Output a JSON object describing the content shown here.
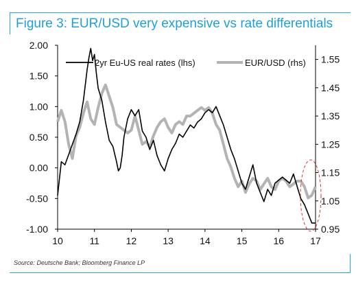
{
  "header": {
    "title": "Figure 3: EUR/USD very expensive vs rate differentials"
  },
  "footer": {
    "source": "Source: Deutsche Bank; Bloomberg Finance LP"
  },
  "chart_data": {
    "type": "line",
    "title": "Figure 3: EUR/USD very expensive vs rate differentials",
    "x_ticks": [
      "10",
      "11",
      "12",
      "13",
      "14",
      "15",
      "16",
      "17"
    ],
    "x_range": [
      10,
      17
    ],
    "y_left": {
      "range": [
        -1.0,
        2.0
      ],
      "ticks": [
        "2.00",
        "1.50",
        "1.00",
        "0.50",
        "0.00",
        "-0.50",
        "-1.00"
      ]
    },
    "y_right": {
      "range": [
        0.95,
        1.6
      ],
      "ticks": [
        "1.55",
        "1.45",
        "1.35",
        "1.25",
        "1.15",
        "1.05",
        "0.95"
      ]
    },
    "legend_position": "top",
    "annotation": "dashed red ellipse highlighting 2016.6-2017",
    "series": [
      {
        "name": "2yr Eu-US real rates (lhs)",
        "axis": "left",
        "color": "#000000",
        "x": [
          10.0,
          10.1,
          10.2,
          10.35,
          10.5,
          10.6,
          10.7,
          10.75,
          10.8,
          10.85,
          10.9,
          10.95,
          11.0,
          11.05,
          11.1,
          11.2,
          11.3,
          11.4,
          11.5,
          11.6,
          11.65,
          11.7,
          11.75,
          11.8,
          11.9,
          12.0,
          12.1,
          12.2,
          12.3,
          12.4,
          12.5,
          12.6,
          12.7,
          12.8,
          12.9,
          13.0,
          13.1,
          13.2,
          13.3,
          13.4,
          13.5,
          13.6,
          13.7,
          13.8,
          13.9,
          14.0,
          14.1,
          14.2,
          14.3,
          14.4,
          14.5,
          14.6,
          14.7,
          14.8,
          14.9,
          15.0,
          15.1,
          15.2,
          15.3,
          15.4,
          15.5,
          15.6,
          15.7,
          15.8,
          15.9,
          16.0,
          16.1,
          16.2,
          16.3,
          16.4,
          16.5,
          16.6,
          16.7,
          16.8,
          16.9,
          17.0
        ],
        "values": [
          -0.45,
          0.1,
          0.05,
          0.3,
          0.55,
          0.75,
          1.1,
          1.35,
          1.6,
          1.8,
          1.95,
          1.75,
          1.85,
          1.55,
          1.3,
          1.1,
          0.75,
          0.45,
          0.35,
          0.1,
          -0.05,
          0.0,
          0.2,
          0.5,
          0.8,
          0.95,
          0.85,
          0.95,
          0.6,
          0.5,
          0.3,
          0.45,
          0.2,
          0.05,
          -0.05,
          0.15,
          0.3,
          0.4,
          0.55,
          0.5,
          0.6,
          0.7,
          0.65,
          0.75,
          0.8,
          0.9,
          0.95,
          0.9,
          1.0,
          0.85,
          0.7,
          0.5,
          0.3,
          0.15,
          -0.05,
          -0.25,
          -0.35,
          -0.15,
          0.05,
          -0.25,
          -0.4,
          -0.55,
          -0.35,
          -0.45,
          -0.25,
          -0.2,
          -0.15,
          -0.2,
          -0.25,
          -0.1,
          -0.3,
          -0.5,
          -0.6,
          -0.75,
          -0.9,
          -0.9
        ]
      },
      {
        "name": "EUR/USD (rhs)",
        "axis": "right",
        "color": "#b3b3b3",
        "x": [
          10.0,
          10.1,
          10.2,
          10.3,
          10.4,
          10.5,
          10.6,
          10.7,
          10.8,
          10.9,
          11.0,
          11.1,
          11.2,
          11.3,
          11.4,
          11.5,
          11.6,
          11.7,
          11.8,
          11.9,
          12.0,
          12.1,
          12.2,
          12.3,
          12.4,
          12.5,
          12.6,
          12.7,
          12.8,
          12.9,
          13.0,
          13.1,
          13.2,
          13.3,
          13.4,
          13.5,
          13.6,
          13.7,
          13.8,
          13.9,
          14.0,
          14.1,
          14.2,
          14.3,
          14.4,
          14.5,
          14.6,
          14.7,
          14.8,
          14.9,
          15.0,
          15.1,
          15.2,
          15.3,
          15.4,
          15.5,
          15.6,
          15.7,
          15.8,
          15.9,
          16.0,
          16.1,
          16.2,
          16.3,
          16.4,
          16.5,
          16.6,
          16.7,
          16.8,
          16.9,
          17.0
        ],
        "values": [
          1.33,
          1.37,
          1.33,
          1.25,
          1.2,
          1.28,
          1.31,
          1.36,
          1.4,
          1.34,
          1.32,
          1.38,
          1.43,
          1.46,
          1.42,
          1.38,
          1.32,
          1.31,
          1.3,
          1.29,
          1.3,
          1.35,
          1.3,
          1.25,
          1.26,
          1.24,
          1.28,
          1.31,
          1.33,
          1.34,
          1.31,
          1.29,
          1.32,
          1.33,
          1.32,
          1.35,
          1.35,
          1.36,
          1.37,
          1.38,
          1.37,
          1.38,
          1.36,
          1.32,
          1.3,
          1.25,
          1.2,
          1.17,
          1.13,
          1.1,
          1.12,
          1.08,
          1.11,
          1.13,
          1.12,
          1.09,
          1.11,
          1.13,
          1.1,
          1.09,
          1.12,
          1.13,
          1.12,
          1.1,
          1.11,
          1.12,
          1.12,
          1.1,
          1.06,
          1.07,
          1.1
        ]
      }
    ]
  }
}
